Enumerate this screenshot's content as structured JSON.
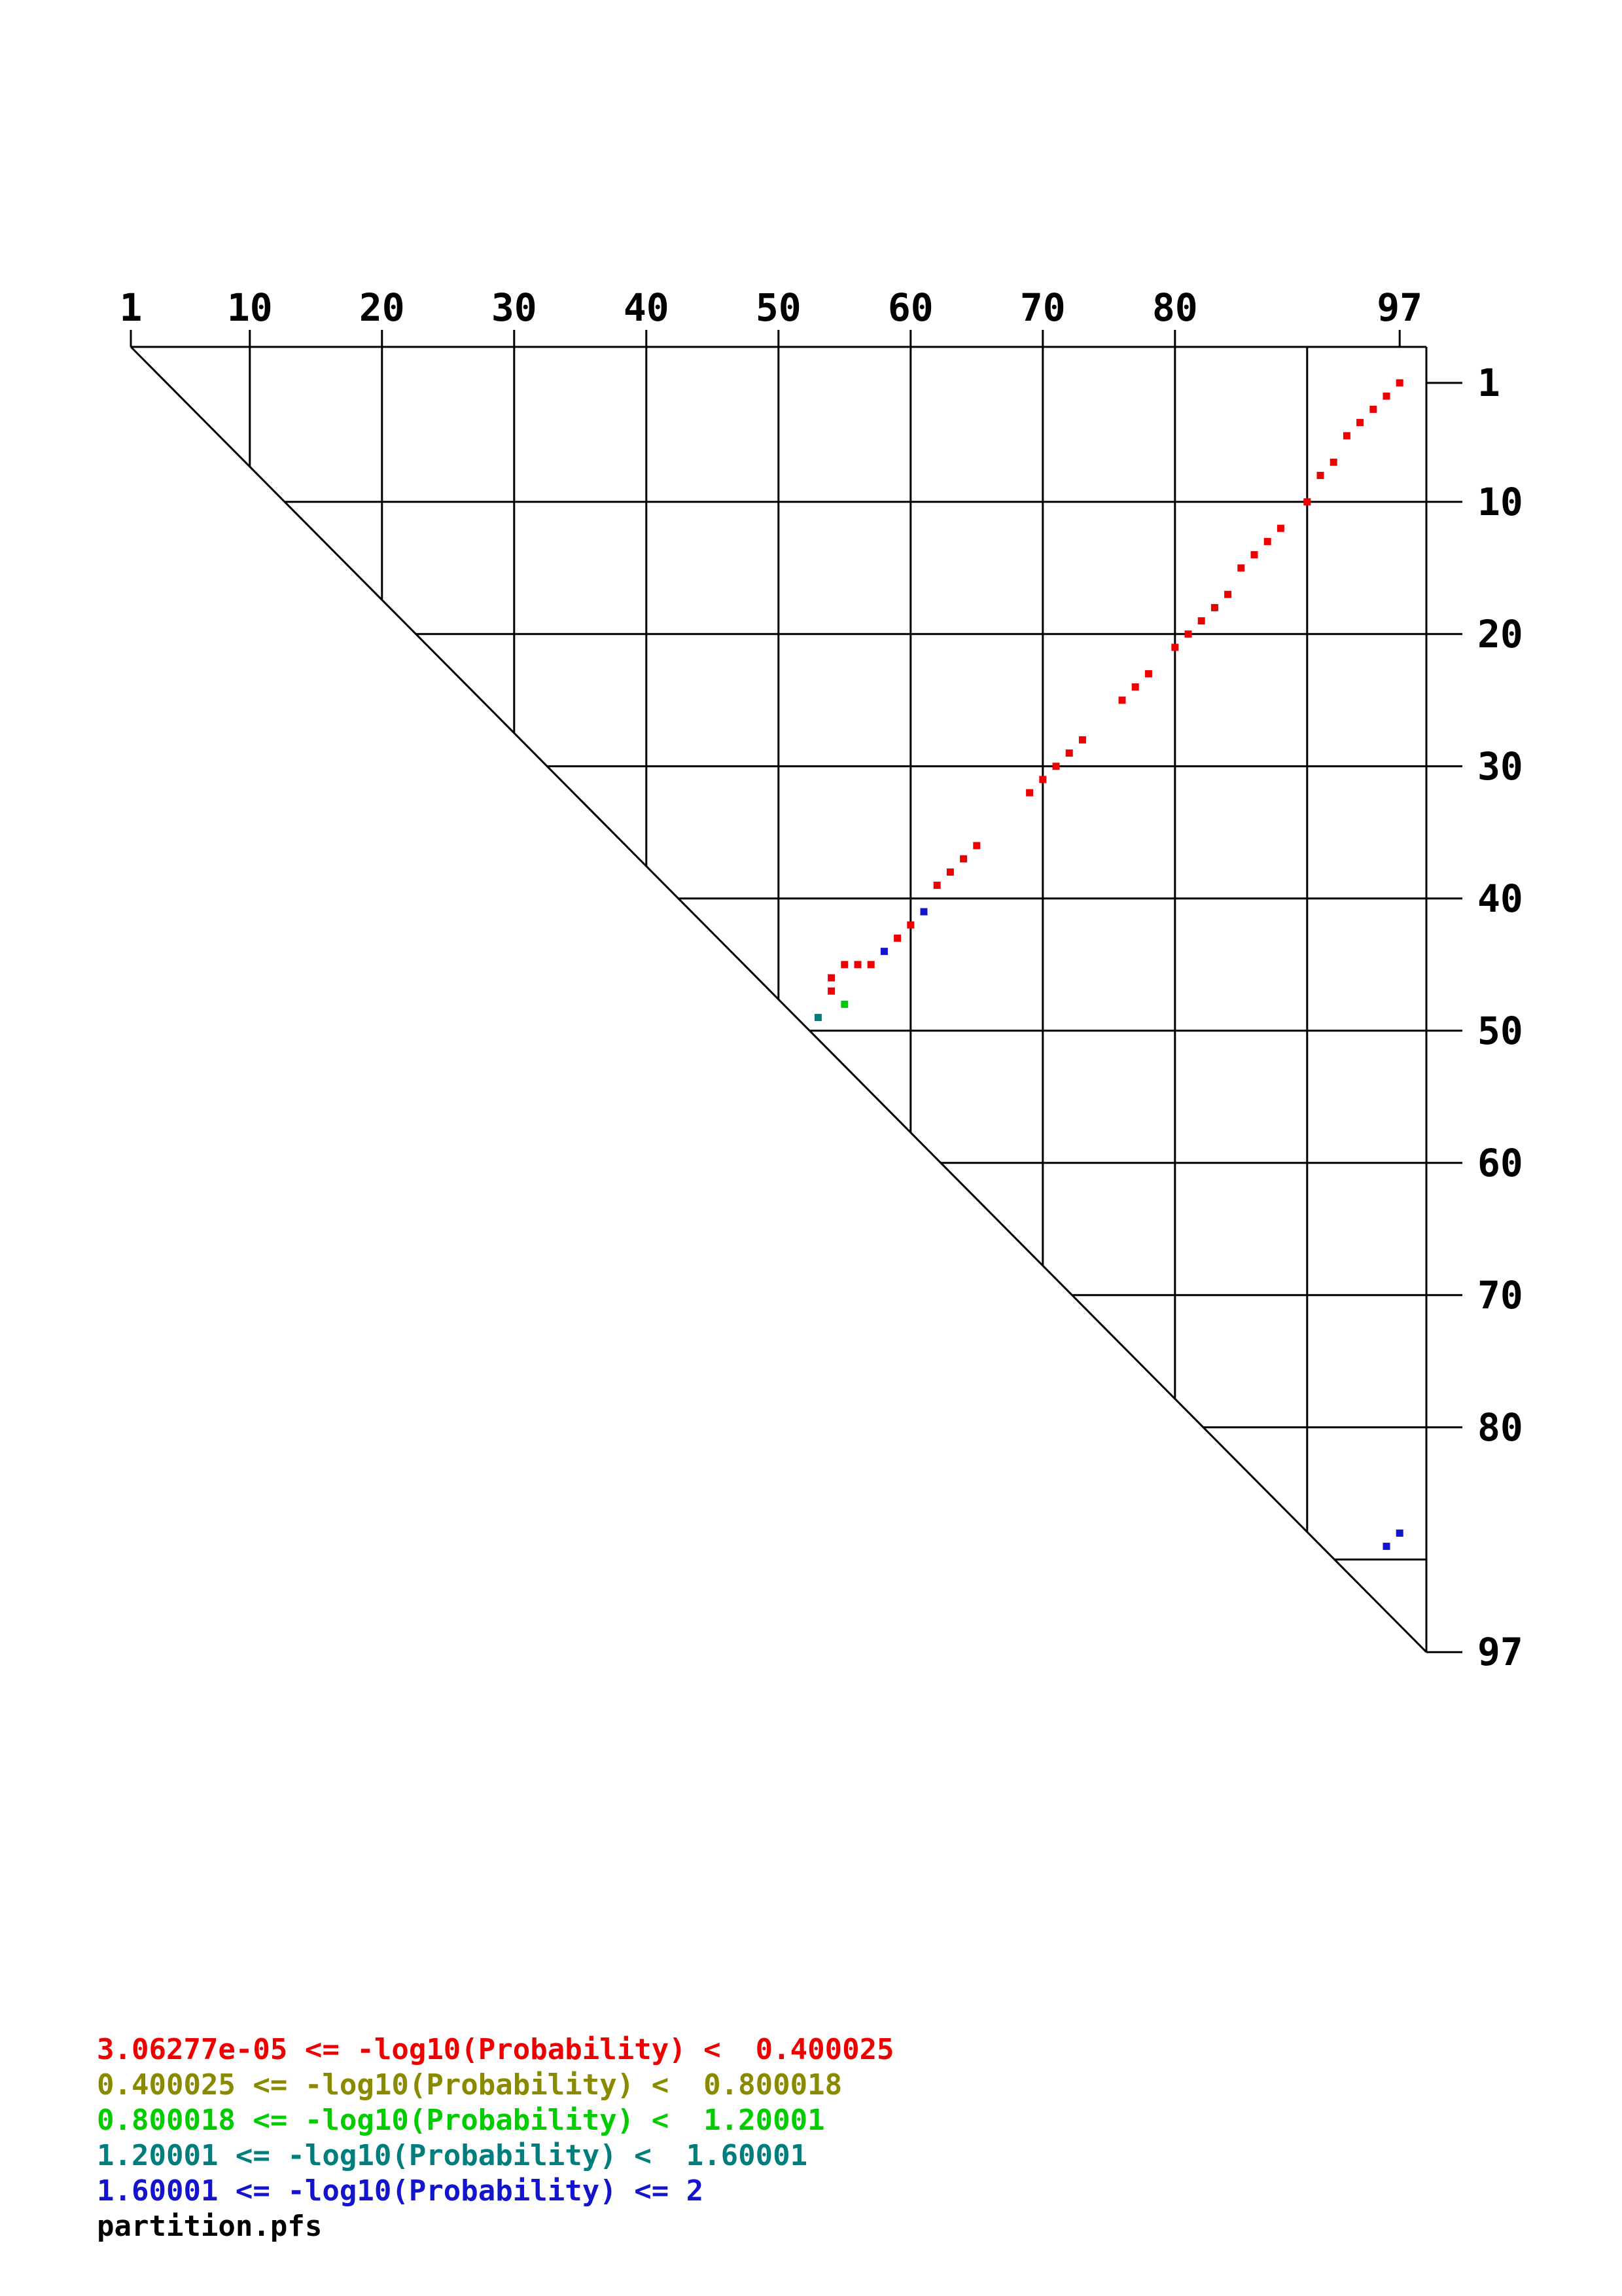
{
  "chart_data": {
    "type": "scatter",
    "title": "",
    "xlabel": "",
    "ylabel": "",
    "description": "Triangular base-pair probability dot plot (partition function)",
    "sequence_length": 97,
    "axis_range": [
      1,
      97
    ],
    "axis_ticks": [
      1,
      10,
      20,
      30,
      40,
      50,
      60,
      70,
      80,
      97
    ],
    "grid_positions": [
      10,
      20,
      30,
      40,
      50,
      60,
      70,
      80,
      90
    ],
    "grid": "on",
    "legend_position": "bottom-left",
    "legend": [
      {
        "label": "3.06277e-05 <= -log10(Probability) <  0.400025",
        "color": "#ee0000"
      },
      {
        "label": "0.400025 <= -log10(Probability) <  0.800018",
        "color": "#8a8a00"
      },
      {
        "label": "0.800018 <= -log10(Probability) <  1.20001",
        "color": "#00cc00"
      },
      {
        "label": "1.20001 <= -log10(Probability) <  1.60001",
        "color": "#007d7d"
      },
      {
        "label": "1.60001 <= -log10(Probability) <= 2",
        "color": "#1414cc"
      }
    ],
    "footer": "partition.pfs",
    "points": [
      {
        "i": 1,
        "j": 97,
        "bin": 0
      },
      {
        "i": 2,
        "j": 96,
        "bin": 0
      },
      {
        "i": 3,
        "j": 95,
        "bin": 0
      },
      {
        "i": 4,
        "j": 94,
        "bin": 0
      },
      {
        "i": 5,
        "j": 93,
        "bin": 0
      },
      {
        "i": 7,
        "j": 92,
        "bin": 0
      },
      {
        "i": 8,
        "j": 91,
        "bin": 0
      },
      {
        "i": 10,
        "j": 90,
        "bin": 0
      },
      {
        "i": 12,
        "j": 88,
        "bin": 0
      },
      {
        "i": 13,
        "j": 87,
        "bin": 0
      },
      {
        "i": 14,
        "j": 86,
        "bin": 0
      },
      {
        "i": 15,
        "j": 85,
        "bin": 0
      },
      {
        "i": 17,
        "j": 84,
        "bin": 0
      },
      {
        "i": 18,
        "j": 83,
        "bin": 0
      },
      {
        "i": 19,
        "j": 82,
        "bin": 0
      },
      {
        "i": 20,
        "j": 81,
        "bin": 0
      },
      {
        "i": 21,
        "j": 80,
        "bin": 0
      },
      {
        "i": 23,
        "j": 78,
        "bin": 0
      },
      {
        "i": 24,
        "j": 77,
        "bin": 0
      },
      {
        "i": 25,
        "j": 76,
        "bin": 0
      },
      {
        "i": 28,
        "j": 73,
        "bin": 0
      },
      {
        "i": 29,
        "j": 72,
        "bin": 0
      },
      {
        "i": 30,
        "j": 71,
        "bin": 0
      },
      {
        "i": 31,
        "j": 70,
        "bin": 0
      },
      {
        "i": 32,
        "j": 69,
        "bin": 0
      },
      {
        "i": 36,
        "j": 65,
        "bin": 0
      },
      {
        "i": 37,
        "j": 64,
        "bin": 0
      },
      {
        "i": 38,
        "j": 63,
        "bin": 0
      },
      {
        "i": 39,
        "j": 62,
        "bin": 0
      },
      {
        "i": 41,
        "j": 61,
        "bin": 4
      },
      {
        "i": 42,
        "j": 60,
        "bin": 0
      },
      {
        "i": 43,
        "j": 59,
        "bin": 0
      },
      {
        "i": 44,
        "j": 58,
        "bin": 4
      },
      {
        "i": 45,
        "j": 57,
        "bin": 0
      },
      {
        "i": 45,
        "j": 56,
        "bin": 0
      },
      {
        "i": 45,
        "j": 55,
        "bin": 0
      },
      {
        "i": 46,
        "j": 54,
        "bin": 0
      },
      {
        "i": 47,
        "j": 54,
        "bin": 0
      },
      {
        "i": 48,
        "j": 55,
        "bin": 2
      },
      {
        "i": 49,
        "j": 53,
        "bin": 3
      },
      {
        "i": 88,
        "j": 97,
        "bin": 4
      },
      {
        "i": 89,
        "j": 96,
        "bin": 4
      }
    ]
  }
}
